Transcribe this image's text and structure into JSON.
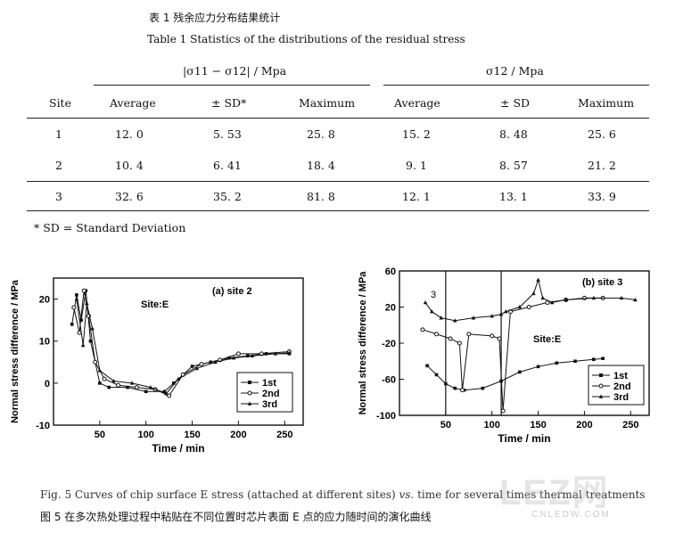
{
  "table": {
    "title_cn": "表 1  残余应力分布结果统计",
    "title_en": "Table 1 Statistics of the distributions of the residual stress",
    "group1_header": "|σ11 − σ12| / Mpa",
    "group2_header": "σ12 / Mpa",
    "columns": [
      "Site",
      "Average",
      "± SD*",
      "Maximum",
      "Average",
      "± SD",
      "Maximum"
    ],
    "rows": [
      [
        "1",
        "12. 0",
        "5. 53",
        "25. 8",
        "15. 2",
        "8. 48",
        "25. 6"
      ],
      [
        "2",
        "10. 4",
        "6. 41",
        "18. 4",
        "9. 1",
        "8. 57",
        "21. 2"
      ],
      [
        "3",
        "32. 6",
        "35. 2",
        "81. 8",
        "12. 1",
        "13. 1",
        "33. 9"
      ]
    ],
    "footnote": "* SD = Standard Deviation"
  },
  "chart_data": [
    {
      "type": "line",
      "panel_label": "(a) site 2",
      "site_label": "Site:E",
      "xlabel": "Time / min",
      "ylabel": "Normal stress difference / MPa",
      "xlim": [
        0,
        270
      ],
      "ylim": [
        -10,
        25
      ],
      "xticks": [
        50,
        100,
        150,
        200,
        250
      ],
      "yticks": [
        -10,
        0,
        10,
        20
      ],
      "legend": [
        "1st",
        "2nd",
        "3rd"
      ],
      "series": [
        {
          "name": "1st",
          "x": [
            20,
            25,
            30,
            35,
            40,
            50,
            60,
            80,
            100,
            120,
            130,
            150,
            170,
            190,
            210,
            230,
            255
          ],
          "y": [
            14,
            21,
            15,
            22,
            10,
            0,
            -1,
            -1,
            -2,
            -2,
            0,
            4,
            5,
            6,
            6.5,
            7,
            7
          ]
        },
        {
          "name": "2nd",
          "x": [
            22,
            28,
            33,
            38,
            45,
            55,
            70,
            90,
            110,
            125,
            140,
            160,
            180,
            200,
            225,
            255
          ],
          "y": [
            18,
            12,
            22,
            16,
            5,
            1,
            -0.5,
            -1,
            -1.5,
            -3,
            2,
            4.5,
            5.5,
            7,
            7,
            7.5
          ]
        },
        {
          "name": "3rd",
          "x": [
            25,
            32,
            36,
            42,
            50,
            65,
            85,
            105,
            122,
            135,
            155,
            175,
            195,
            215,
            240,
            255
          ],
          "y": [
            20,
            9,
            19,
            13,
            3,
            0.5,
            0,
            -1,
            -2.5,
            1,
            3.5,
            5,
            6,
            6.5,
            7,
            7.2
          ]
        }
      ]
    },
    {
      "type": "line",
      "panel_label": "(b) site 3",
      "site_label": "Site:E",
      "xlabel": "Time / min",
      "ylabel": "Normal stress difference / MPa",
      "xlim": [
        0,
        270
      ],
      "ylim": [
        -100,
        60
      ],
      "xticks": [
        50,
        100,
        150,
        200,
        250
      ],
      "yticks": [
        -100,
        -60,
        -20,
        20,
        60
      ],
      "legend": [
        "1st",
        "2nd",
        "3rd"
      ],
      "annotation": "3",
      "vertical_lines": [
        50,
        110
      ],
      "series": [
        {
          "name": "1st",
          "x": [
            30,
            40,
            50,
            60,
            70,
            90,
            110,
            130,
            150,
            170,
            190,
            210,
            220
          ],
          "y": [
            -45,
            -55,
            -65,
            -70,
            -72,
            -70,
            -62,
            -52,
            -46,
            -42,
            -40,
            -38,
            -37
          ]
        },
        {
          "name": "2nd",
          "x": [
            25,
            40,
            55,
            65,
            68,
            75,
            100,
            108,
            112,
            120,
            140,
            160,
            180,
            200,
            220
          ],
          "y": [
            -5,
            -10,
            -15,
            -20,
            -72,
            -10,
            -12,
            -15,
            -95,
            15,
            20,
            25,
            28,
            30,
            30
          ]
        },
        {
          "name": "3rd",
          "x": [
            28,
            35,
            45,
            60,
            80,
            100,
            110,
            115,
            130,
            145,
            150,
            155,
            165,
            180,
            210,
            240,
            255
          ],
          "y": [
            25,
            15,
            8,
            5,
            8,
            10,
            12,
            15,
            20,
            35,
            50,
            30,
            25,
            28,
            30,
            30,
            28
          ]
        }
      ]
    }
  ],
  "figure": {
    "caption_en_prefix": "Fig. 5  Curves of chip surface E stress (attached at different sites)",
    "caption_en_vs": "vs.",
    "caption_en_suffix": "time for several times thermal treatments",
    "caption_cn": "图 5  在多次热处理过程中粘贴在不同位置时芯片表面  E 点的应力随时间的演化曲线"
  },
  "watermark": {
    "text": "LEZ网",
    "subtext": "CNLEDW.COM"
  }
}
